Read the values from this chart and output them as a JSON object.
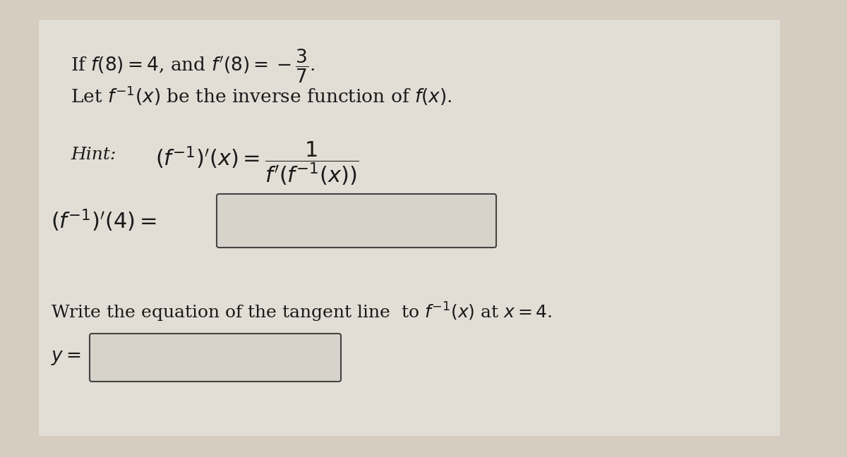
{
  "background_color": "#d4cdc0",
  "white_area_color": "#e8e4dc",
  "text_color": "#1a1a1a",
  "fig_width": 12.0,
  "fig_height": 6.48,
  "box_edge_color": "#555555",
  "box_face_color": "#d4cdc0",
  "font_size_main": 19,
  "font_size_hint": 22,
  "font_size_problem": 22
}
